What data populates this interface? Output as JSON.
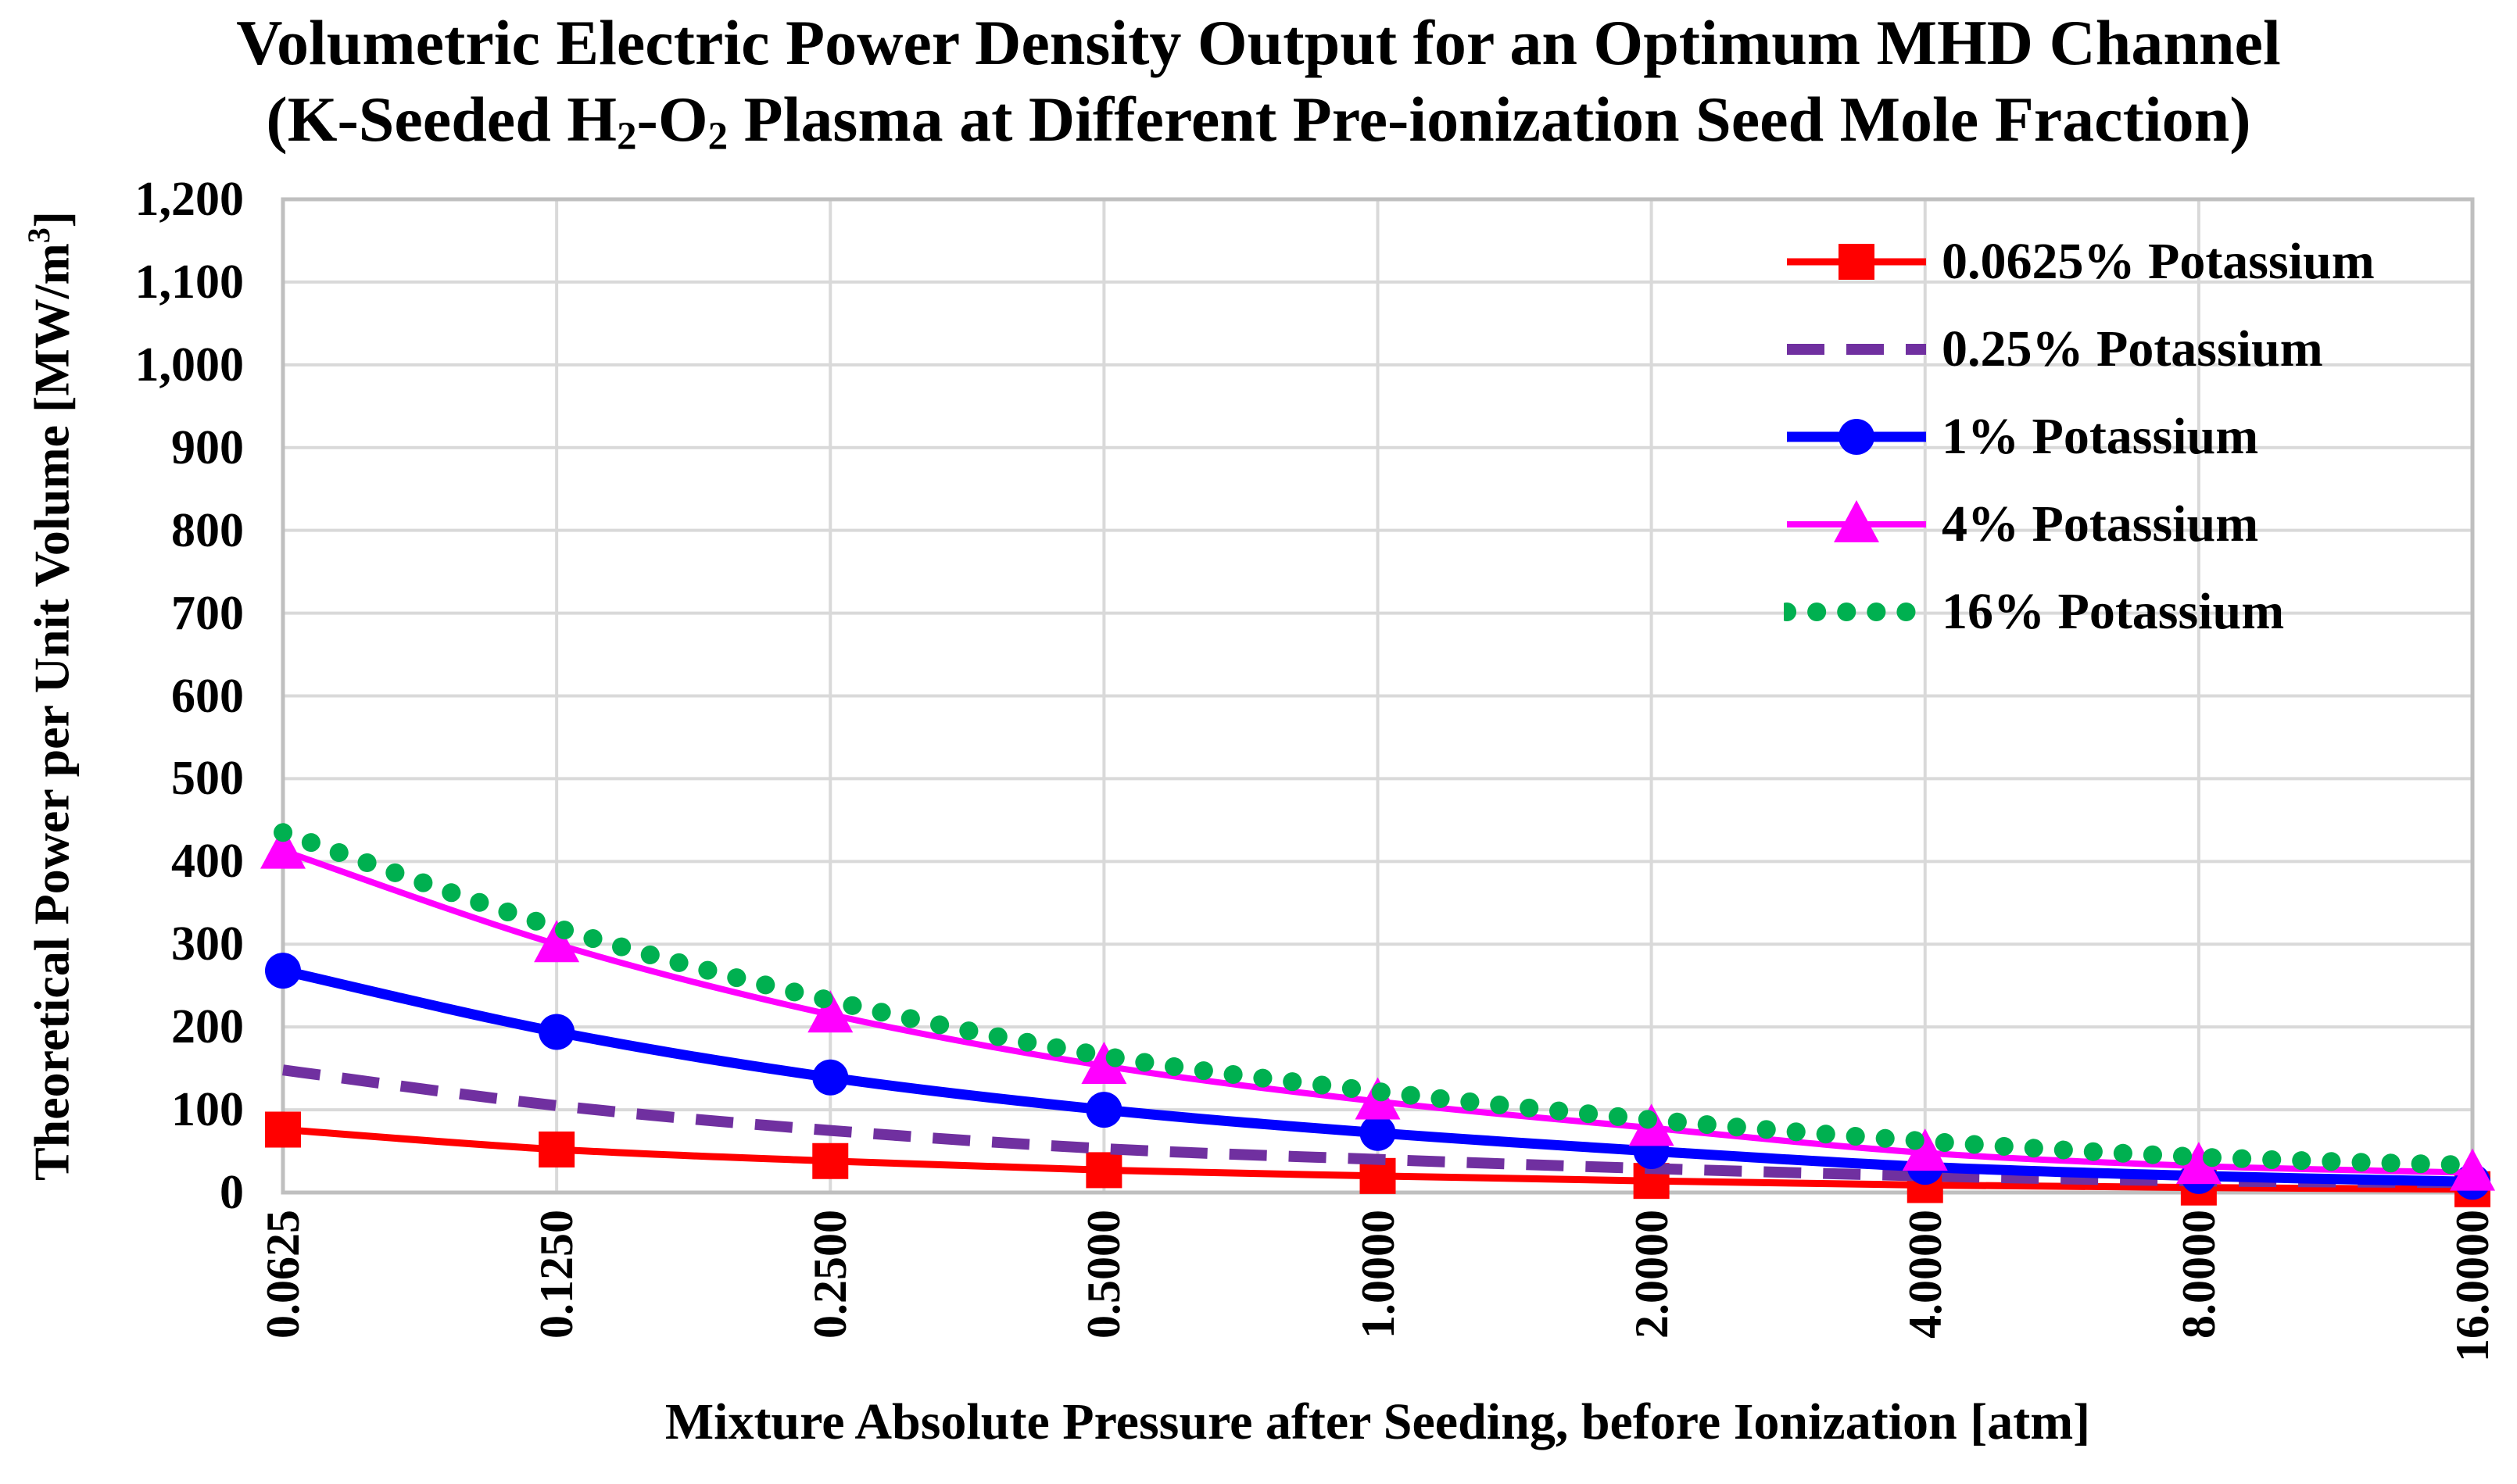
{
  "title": {
    "line1": "Volumetric Electric Power Density Output for an Optimum MHD Channel",
    "line2_segments": [
      {
        "t": "(K-Seeded H"
      },
      {
        "t": "2",
        "style": "sub"
      },
      {
        "t": "-O"
      },
      {
        "t": "2",
        "style": "sub"
      },
      {
        "t": " Plasma at Different Pre-ionization Seed Mole Fraction)"
      }
    ]
  },
  "axes": {
    "y": {
      "title_segments": [
        {
          "t": "Theoretical Power per Unit Volume [MW/m"
        },
        {
          "t": "3",
          "style": "sup"
        },
        {
          "t": "]"
        }
      ],
      "tick_labels_top_down": [
        "1,200",
        "1,100",
        "1,000",
        "900",
        "800",
        "700",
        "600",
        "500",
        "400",
        "300",
        "200",
        "100",
        "0"
      ]
    },
    "x": {
      "title": "Mixture Absolute Pressure after Seeding, before Ionization [atm]",
      "tick_labels": [
        "0.0625",
        "0.1250",
        "0.2500",
        "0.5000",
        "1.0000",
        "2.0000",
        "4.0000",
        "8.0000",
        "16.0000"
      ]
    }
  },
  "chart_data": {
    "type": "line",
    "title": "Volumetric Electric Power Density Output for an Optimum MHD Channel (K-Seeded H2-O2 Plasma at Different Pre-ionization Seed Mole Fraction)",
    "xlabel": "Mixture Absolute Pressure after Seeding, before Ionization [atm]",
    "ylabel": "Theoretical Power per Unit Volume [MW/m3]",
    "categories": [
      0.0625,
      0.125,
      0.25,
      0.5,
      1,
      2,
      4,
      8,
      16
    ],
    "x_axis_note": "category axis, pressure doubling each tick",
    "ylim": [
      0,
      1200
    ],
    "y_step": 100,
    "grid": true,
    "legend_position": "top-right-inside",
    "series": [
      {
        "name": "0.0625% Potassium",
        "color": "#FF0000",
        "line": "solid",
        "marker": "square",
        "values": [
          76,
          52,
          38,
          27,
          20,
          14,
          9,
          6,
          4
        ]
      },
      {
        "name": "0.25% Potassium",
        "color": "#7030A0",
        "line": "dashed",
        "marker": "none",
        "values": [
          148,
          105,
          75,
          53,
          40,
          29,
          20,
          14,
          12
        ]
      },
      {
        "name": "1% Potassium",
        "color": "#0000FF",
        "line": "solid",
        "marker": "circle",
        "values": [
          268,
          194,
          139,
          100,
          72,
          50,
          31,
          20,
          13
        ]
      },
      {
        "name": "4% Potassium",
        "color": "#FF00FF",
        "line": "solid",
        "marker": "triangle",
        "values": [
          413,
          300,
          215,
          153,
          110,
          78,
          48,
          32,
          24
        ]
      },
      {
        "name": "16% Potassium",
        "color": "#00B050",
        "line": "dotted",
        "marker": "none",
        "values": [
          435,
          320,
          232,
          165,
          122,
          88,
          62,
          43,
          33
        ]
      }
    ]
  },
  "style": {
    "grid_color": "#D9D9D9",
    "border_color": "#BFBFBF",
    "text_color": "#000000",
    "background": "#FFFFFF"
  }
}
